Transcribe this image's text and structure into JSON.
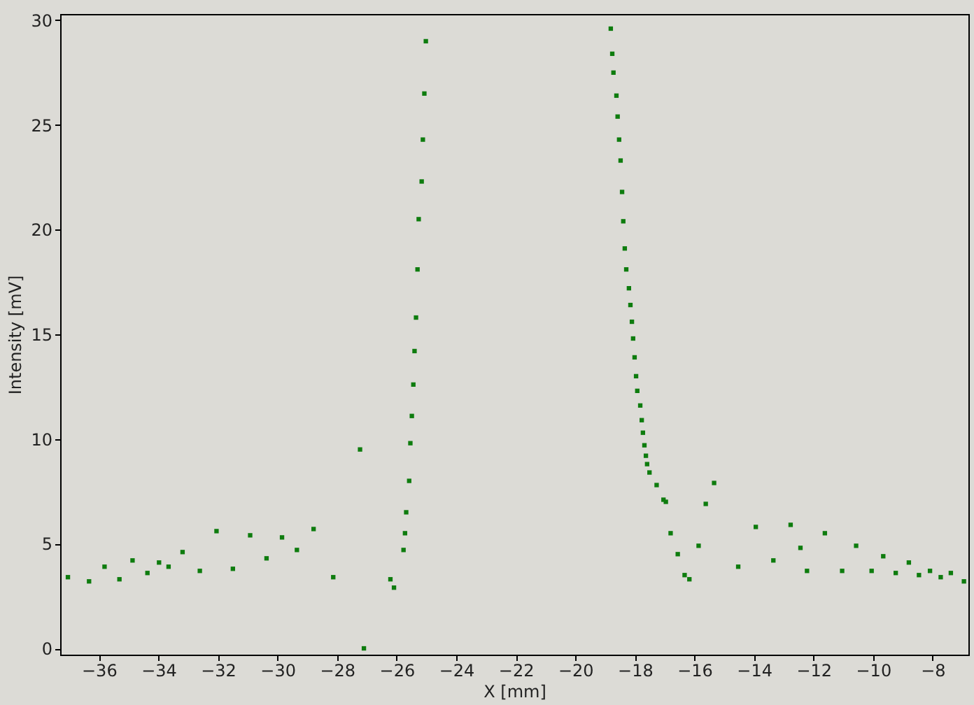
{
  "chart_data": {
    "type": "scatter",
    "xlabel": "X [mm]",
    "ylabel": "Intensity [mV]",
    "marker": "square",
    "grid": false,
    "xlim": [
      -37.3,
      -6.8
    ],
    "ylim": [
      -0.3,
      30.3
    ],
    "xticks": [
      -36,
      -34,
      -32,
      -30,
      -28,
      -26,
      -24,
      -22,
      -20,
      -18,
      -16,
      -14,
      -12,
      -10,
      -8
    ],
    "yticks": [
      0,
      5,
      10,
      15,
      20,
      25,
      30
    ],
    "series": [
      {
        "color": "#0e7c0e",
        "x": [
          -37.04,
          -36.33,
          -35.81,
          -35.31,
          -34.87,
          -34.37,
          -33.98,
          -33.66,
          -33.19,
          -32.61,
          -32.05,
          -31.5,
          -30.92,
          -30.37,
          -29.85,
          -29.35,
          -28.79,
          -28.13,
          -27.23,
          -27.1,
          -26.21,
          -26.09,
          -25.77,
          -25.72,
          -25.68,
          -25.58,
          -25.54,
          -25.49,
          -25.44,
          -25.4,
          -25.35,
          -25.3,
          -25.26,
          -25.16,
          -25.12,
          -25.07,
          -25.02,
          -18.81,
          -18.76,
          -18.72,
          -18.62,
          -18.58,
          -18.53,
          -18.48,
          -18.43,
          -18.39,
          -18.34,
          -18.29,
          -18.2,
          -18.15,
          -18.1,
          -18.06,
          -18.01,
          -17.96,
          -17.92,
          -17.82,
          -17.77,
          -17.73,
          -17.68,
          -17.63,
          -17.59,
          -17.51,
          -17.27,
          -17.04,
          -16.96,
          -16.8,
          -16.56,
          -16.33,
          -16.17,
          -15.86,
          -15.62,
          -15.34,
          -14.53,
          -13.94,
          -13.35,
          -12.77,
          -12.44,
          -12.22,
          -11.62,
          -11.04,
          -10.57,
          -10.05,
          -9.66,
          -9.24,
          -8.8,
          -8.46,
          -8.09,
          -7.73,
          -7.39,
          -6.95
        ],
        "values": [
          3.4,
          3.2,
          3.9,
          3.3,
          4.2,
          3.6,
          4.1,
          3.9,
          4.6,
          3.7,
          5.6,
          3.8,
          5.4,
          4.3,
          5.3,
          4.7,
          5.7,
          3.4,
          9.5,
          0,
          3.3,
          2.9,
          4.7,
          5.5,
          6.5,
          8,
          9.8,
          11.1,
          12.6,
          14.2,
          15.8,
          18.1,
          20.5,
          22.3,
          24.3,
          26.5,
          29,
          29.6,
          28.4,
          27.5,
          26.4,
          25.4,
          24.3,
          23.3,
          21.8,
          20.4,
          19.1,
          18.1,
          17.2,
          16.4,
          15.6,
          14.8,
          13.9,
          13,
          12.3,
          11.6,
          10.9,
          10.3,
          9.7,
          9.2,
          8.8,
          8.4,
          7.8,
          7.1,
          7,
          5.5,
          4.5,
          3.5,
          3.3,
          4.9,
          6.9,
          7.9,
          3.9,
          5.8,
          4.2,
          5.9,
          4.8,
          3.7,
          5.5,
          3.7,
          4.9,
          3.7,
          4.4,
          3.6,
          4.1,
          3.5,
          3.7,
          3.4,
          3.6,
          3.2
        ]
      }
    ]
  }
}
